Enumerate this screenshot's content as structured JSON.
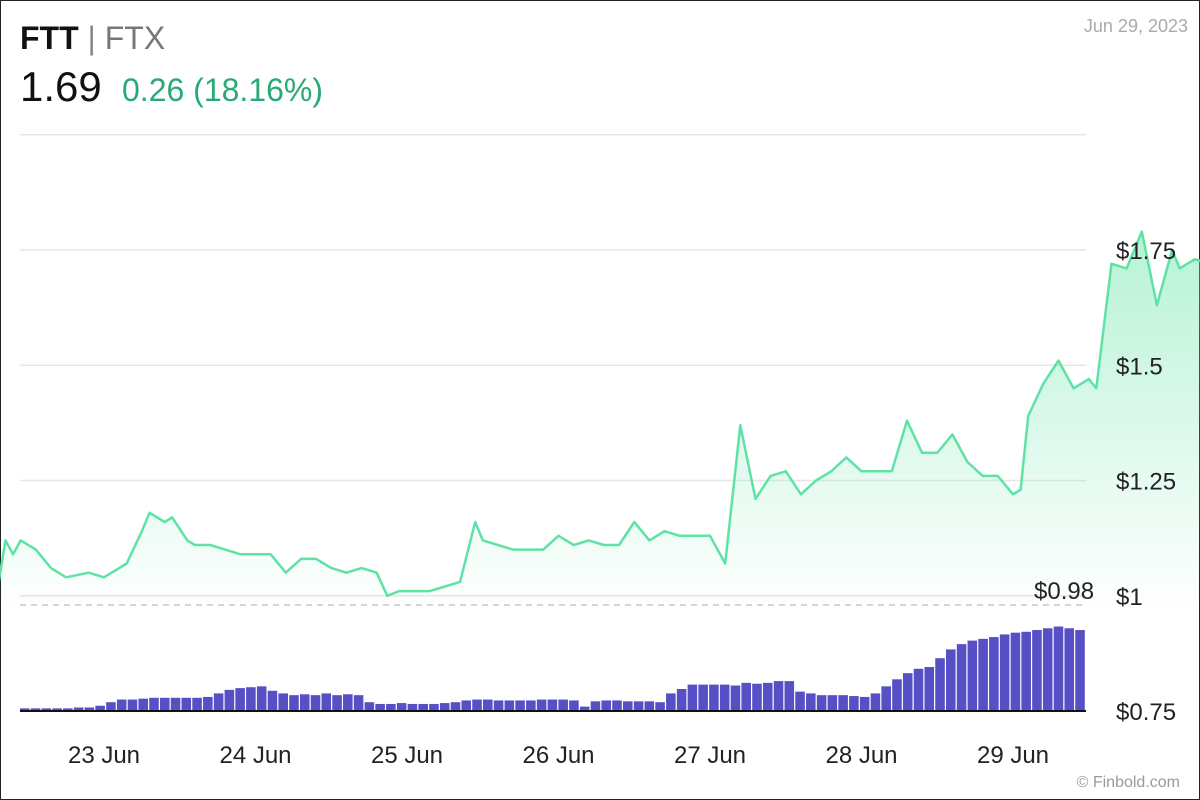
{
  "header": {
    "symbol": "FTT",
    "separator": "|",
    "exchange": "FTX",
    "date": "Jun 29, 2023",
    "price": "1.69",
    "change": "0.26 (18.16%)",
    "credit": "© Finbold.com"
  },
  "colors": {
    "up_line": "#5fe3a5",
    "up_fill": "#5fe3a5",
    "down_line": "#f07c7c",
    "down_fill": "#f6b8b8",
    "volume": "#564fc6",
    "grid": "#e6e6e6",
    "baseline": "#c8c8c8"
  },
  "chart_data": {
    "type": "line",
    "title": "",
    "xlabel": "",
    "ylabel": "",
    "ylim": [
      0.75,
      2.0
    ],
    "x_tick_labels": [
      "23 Jun",
      "24 Jun",
      "25 Jun",
      "26 Jun",
      "27 Jun",
      "28 Jun",
      "29 Jun"
    ],
    "y_tick_labels": [
      "$1.75",
      "$1.5",
      "$1.25",
      "$1",
      "$0.75"
    ],
    "y_tick_values": [
      1.75,
      1.5,
      1.25,
      1.0,
      0.75
    ],
    "reference_label": "$0.98",
    "reference_value": 0.98,
    "grid": true,
    "price_points": [
      [
        22.0,
        0.98
      ],
      [
        22.05,
        0.96
      ],
      [
        22.1,
        0.97
      ],
      [
        22.2,
        0.96
      ],
      [
        22.27,
        0.96
      ],
      [
        22.35,
        1.12
      ],
      [
        22.4,
        1.09
      ],
      [
        22.45,
        1.12
      ],
      [
        22.55,
        1.1
      ],
      [
        22.65,
        1.06
      ],
      [
        22.75,
        1.04
      ],
      [
        22.9,
        1.05
      ],
      [
        23.0,
        1.04
      ],
      [
        23.05,
        1.05
      ],
      [
        23.15,
        1.07
      ],
      [
        23.25,
        1.14
      ],
      [
        23.3,
        1.18
      ],
      [
        23.4,
        1.16
      ],
      [
        23.45,
        1.17
      ],
      [
        23.55,
        1.12
      ],
      [
        23.6,
        1.11
      ],
      [
        23.7,
        1.11
      ],
      [
        23.8,
        1.1
      ],
      [
        23.9,
        1.09
      ],
      [
        24.0,
        1.09
      ],
      [
        24.1,
        1.09
      ],
      [
        24.2,
        1.05
      ],
      [
        24.3,
        1.08
      ],
      [
        24.4,
        1.08
      ],
      [
        24.5,
        1.06
      ],
      [
        24.6,
        1.05
      ],
      [
        24.7,
        1.06
      ],
      [
        24.8,
        1.05
      ],
      [
        24.87,
        1.0
      ],
      [
        24.95,
        1.01
      ],
      [
        25.05,
        1.01
      ],
      [
        25.1,
        1.01
      ],
      [
        25.15,
        1.01
      ],
      [
        25.25,
        1.02
      ],
      [
        25.35,
        1.03
      ],
      [
        25.45,
        1.16
      ],
      [
        25.5,
        1.12
      ],
      [
        25.6,
        1.11
      ],
      [
        25.7,
        1.1
      ],
      [
        25.8,
        1.1
      ],
      [
        25.9,
        1.1
      ],
      [
        26.0,
        1.13
      ],
      [
        26.1,
        1.11
      ],
      [
        26.2,
        1.12
      ],
      [
        26.3,
        1.11
      ],
      [
        26.4,
        1.11
      ],
      [
        26.5,
        1.16
      ],
      [
        26.6,
        1.12
      ],
      [
        26.7,
        1.14
      ],
      [
        26.8,
        1.13
      ],
      [
        26.9,
        1.13
      ],
      [
        27.0,
        1.13
      ],
      [
        27.1,
        1.07
      ],
      [
        27.2,
        1.37
      ],
      [
        27.3,
        1.21
      ],
      [
        27.4,
        1.26
      ],
      [
        27.5,
        1.27
      ],
      [
        27.6,
        1.22
      ],
      [
        27.7,
        1.25
      ],
      [
        27.8,
        1.27
      ],
      [
        27.9,
        1.3
      ],
      [
        28.0,
        1.27
      ],
      [
        28.1,
        1.27
      ],
      [
        28.2,
        1.27
      ],
      [
        28.3,
        1.38
      ],
      [
        28.4,
        1.31
      ],
      [
        28.5,
        1.31
      ],
      [
        28.6,
        1.35
      ],
      [
        28.7,
        1.29
      ],
      [
        28.8,
        1.26
      ],
      [
        28.9,
        1.26
      ],
      [
        29.0,
        1.22
      ],
      [
        29.05,
        1.23
      ],
      [
        29.1,
        1.39
      ],
      [
        29.2,
        1.46
      ],
      [
        29.3,
        1.51
      ],
      [
        29.4,
        1.45
      ],
      [
        29.5,
        1.47
      ],
      [
        29.55,
        1.45
      ],
      [
        29.65,
        1.72
      ],
      [
        29.75,
        1.71
      ],
      [
        29.85,
        1.79
      ],
      [
        29.95,
        1.63
      ],
      [
        30.05,
        1.75
      ],
      [
        30.1,
        1.71
      ],
      [
        30.2,
        1.73
      ],
      [
        30.3,
        1.72
      ],
      [
        30.35,
        1.74
      ],
      [
        30.42,
        1.69
      ]
    ],
    "volume_levels": [
      0.03,
      0.03,
      0.03,
      0.03,
      0.03,
      0.04,
      0.04,
      0.06,
      0.1,
      0.13,
      0.13,
      0.14,
      0.15,
      0.15,
      0.15,
      0.15,
      0.15,
      0.16,
      0.2,
      0.24,
      0.26,
      0.27,
      0.28,
      0.23,
      0.2,
      0.18,
      0.19,
      0.18,
      0.2,
      0.18,
      0.19,
      0.18,
      0.1,
      0.08,
      0.08,
      0.09,
      0.08,
      0.08,
      0.08,
      0.09,
      0.1,
      0.12,
      0.13,
      0.13,
      0.12,
      0.12,
      0.12,
      0.12,
      0.13,
      0.13,
      0.13,
      0.12,
      0.05,
      0.11,
      0.12,
      0.12,
      0.11,
      0.11,
      0.11,
      0.1,
      0.2,
      0.25,
      0.3,
      0.3,
      0.3,
      0.3,
      0.29,
      0.32,
      0.31,
      0.32,
      0.34,
      0.34,
      0.22,
      0.2,
      0.18,
      0.18,
      0.18,
      0.17,
      0.16,
      0.2,
      0.28,
      0.36,
      0.43,
      0.48,
      0.5,
      0.6,
      0.7,
      0.76,
      0.8,
      0.82,
      0.84,
      0.87,
      0.89,
      0.9,
      0.92,
      0.94,
      0.96,
      0.94,
      0.92
    ]
  }
}
